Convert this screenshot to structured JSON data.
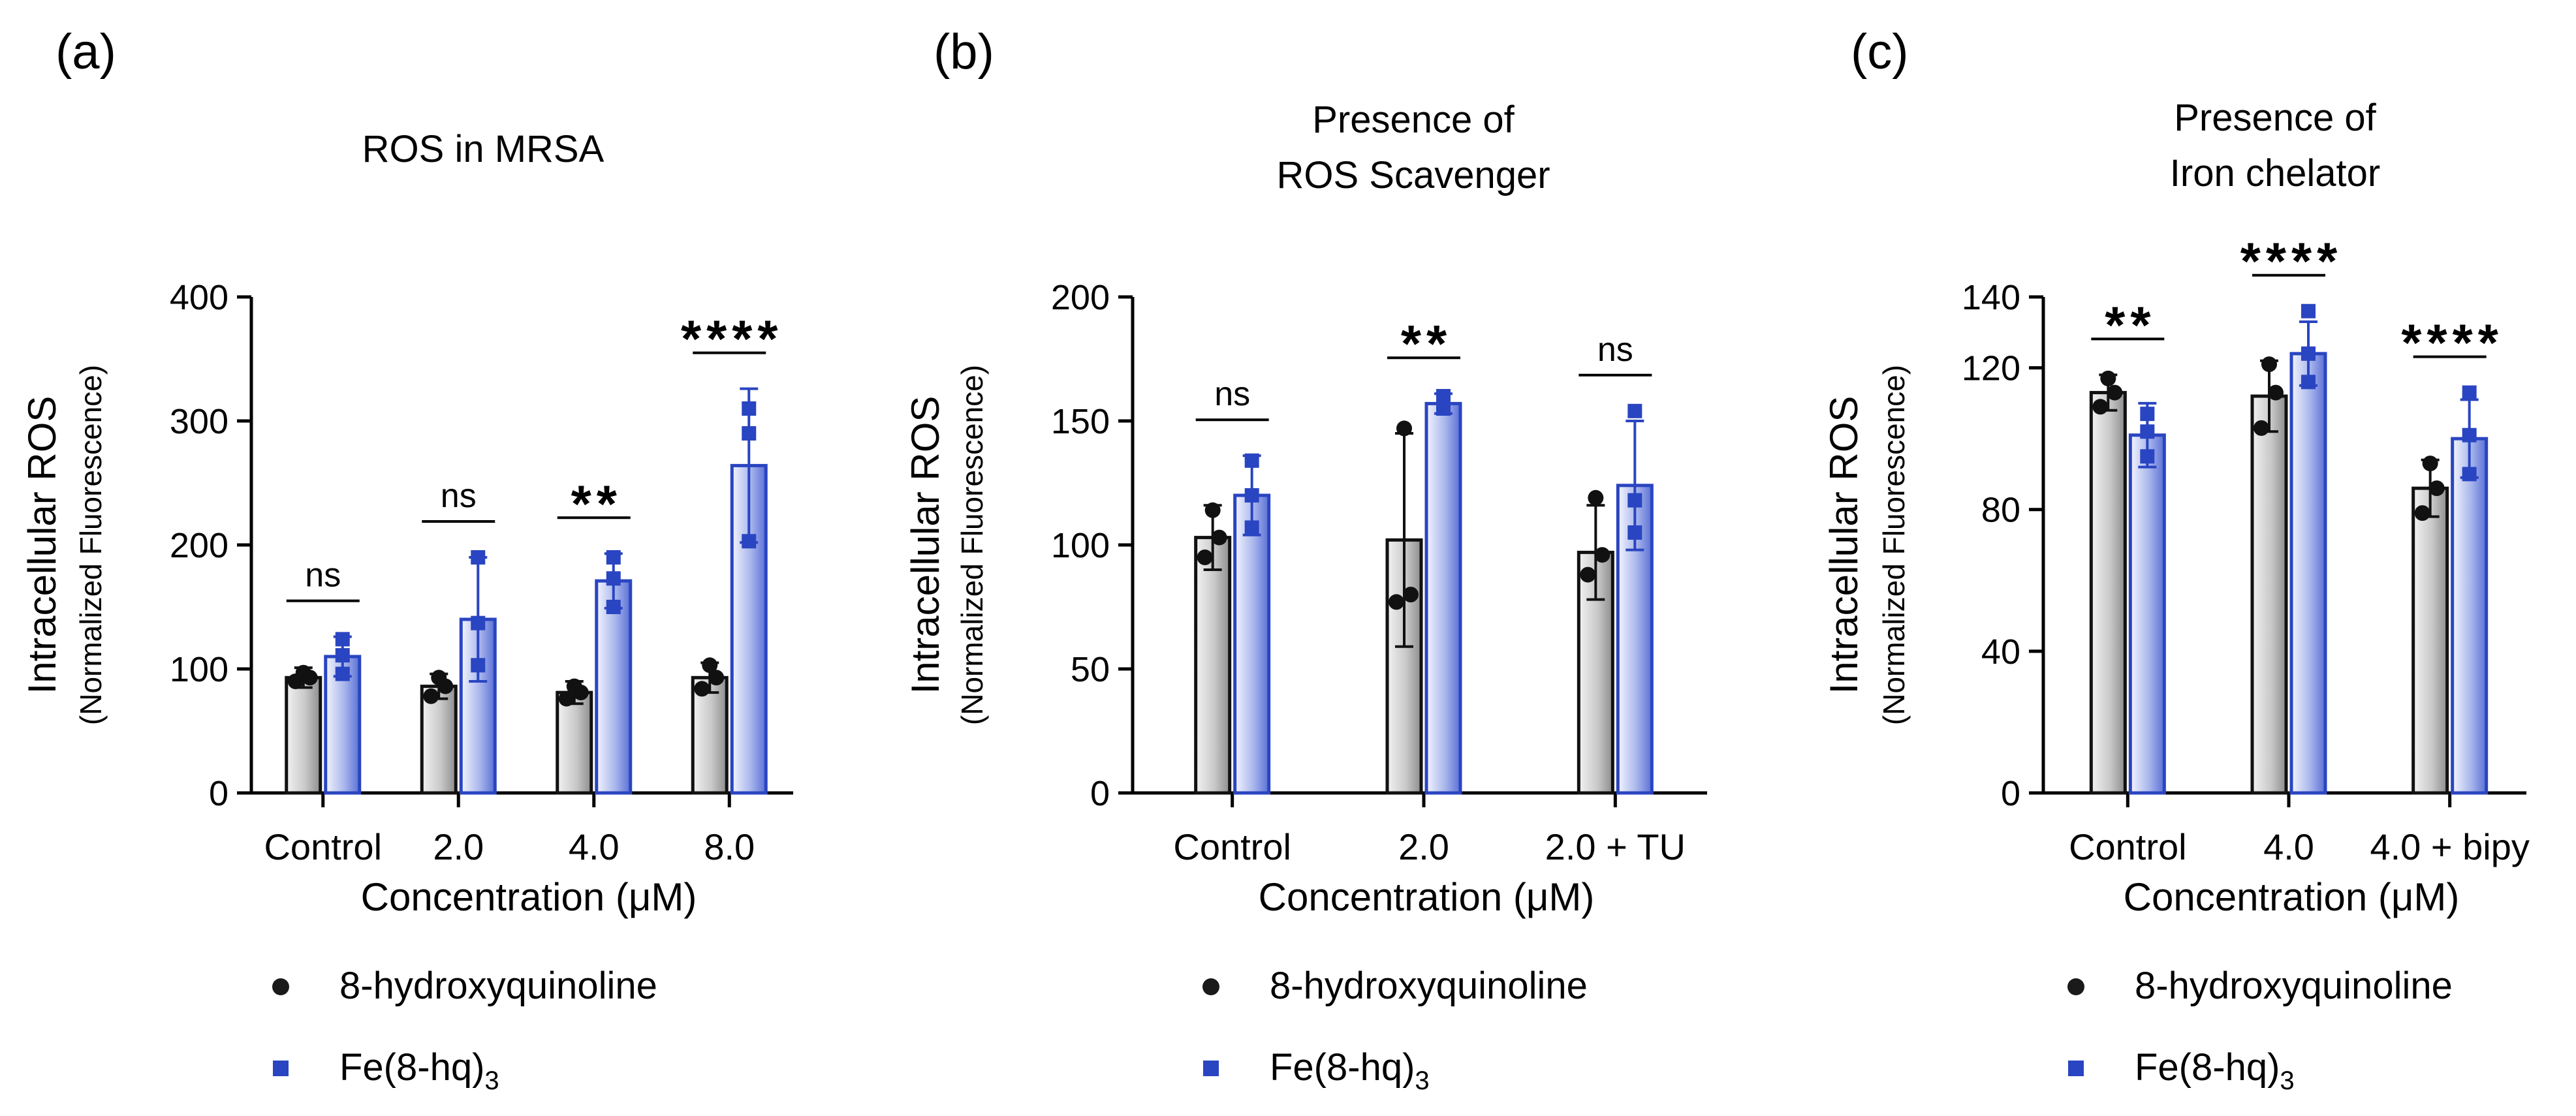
{
  "legend": {
    "series": [
      {
        "label": "8-hydroxyquinoline",
        "marker": "circle",
        "color": "#1a1a1a"
      },
      {
        "label": "Fe(8-hq)",
        "subscript": "3",
        "marker": "square",
        "color": "#2a45c1"
      }
    ]
  },
  "colors": {
    "gray_bar_edge": "#111111",
    "blue": "#2a45c1"
  },
  "chart_data": [
    {
      "panel": "(a)",
      "type": "bar",
      "title": [
        "ROS in MRSA"
      ],
      "xlabel": "Concentration (μM)",
      "ylabel": "Intracellular ROS",
      "ylabel2": "(Normalized Fluorescence)",
      "ylim": [
        0,
        400
      ],
      "yticks": [
        0,
        100,
        200,
        300,
        400
      ],
      "categories": [
        "Control",
        "2.0",
        "4.0",
        "8.0"
      ],
      "series": [
        {
          "name": "8-hydroxyquinoline",
          "values": [
            93,
            86,
            81,
            93
          ],
          "errors": [
            8,
            10,
            9,
            12
          ],
          "points": [
            [
              90,
              93,
              97
            ],
            [
              78,
              86,
              93
            ],
            [
              76,
              81,
              86
            ],
            [
              84,
              93,
              103
            ]
          ]
        },
        {
          "name": "Fe(8-hq)3",
          "values": [
            110,
            140,
            171,
            264
          ],
          "errors": [
            16,
            50,
            22,
            62
          ],
          "points": [
            [
              96,
              111,
              124
            ],
            [
              103,
              137,
              190
            ],
            [
              150,
              173,
              190
            ],
            [
              203,
              290,
              310
            ]
          ]
        }
      ],
      "significance": [
        "ns",
        "ns",
        "**",
        "****"
      ]
    },
    {
      "panel": "(b)",
      "type": "bar",
      "title": [
        "Presence of",
        "ROS Scavenger"
      ],
      "xlabel": "Concentration (μM)",
      "ylabel": "Intracellular ROS",
      "ylabel2": "(Normalized Fluorescence)",
      "ylim": [
        0,
        200
      ],
      "yticks": [
        0,
        50,
        100,
        150,
        200
      ],
      "categories": [
        "Control",
        "2.0",
        "2.0 + TU"
      ],
      "series": [
        {
          "name": "8-hydroxyquinoline",
          "values": [
            103,
            102,
            97
          ],
          "errors": [
            13,
            43,
            19
          ],
          "points": [
            [
              95,
              103,
              114
            ],
            [
              77,
              80,
              147
            ],
            [
              88,
              96,
              119
            ]
          ]
        },
        {
          "name": "Fe(8-hq)3",
          "values": [
            120,
            157,
            124
          ],
          "errors": [
            16,
            4,
            26
          ],
          "points": [
            [
              107,
              120,
              134
            ],
            [
              155,
              157,
              160
            ],
            [
              105,
              118,
              154
            ]
          ]
        }
      ],
      "significance": [
        "ns",
        "**",
        "ns"
      ]
    },
    {
      "panel": "(c)",
      "type": "bar",
      "title": [
        "Presence of",
        "Iron chelator"
      ],
      "xlabel": "Concentration (μM)",
      "ylabel": "Intracellular ROS",
      "ylabel2": "(Normalized Fluorescence)",
      "ylim": [
        0,
        140
      ],
      "yticks": [
        0,
        40,
        80,
        120,
        140
      ],
      "categories": [
        "Control",
        "4.0",
        "4.0 + bipy"
      ],
      "series": [
        {
          "name": "8-hydroxyquinoline",
          "values": [
            113,
            112,
            86
          ],
          "errors": [
            5,
            10,
            8
          ],
          "points": [
            [
              109,
              113,
              117
            ],
            [
              103,
              113,
              121
            ],
            [
              79,
              86,
              93
            ]
          ]
        },
        {
          "name": "Fe(8-hq)3",
          "values": [
            101,
            124,
            100
          ],
          "errors": [
            9,
            9,
            11
          ],
          "points": [
            [
              95,
              102,
              107
            ],
            [
              116,
              124,
              136
            ],
            [
              90,
              101,
              113
            ]
          ]
        }
      ],
      "significance": [
        "**",
        "****",
        "****"
      ]
    }
  ]
}
